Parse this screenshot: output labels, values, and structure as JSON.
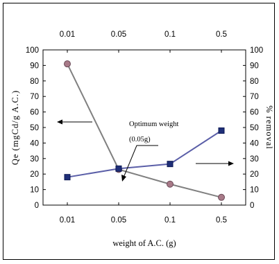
{
  "chart_data": {
    "type": "line",
    "categories": [
      "0.01",
      "0.05",
      "0.1",
      "0.5"
    ],
    "xlabel": "weight of A.C. (g)",
    "ylabel_left": "Qe (mgCd/g A.C.)",
    "ylabel_right": "% removal",
    "ylim": [
      0,
      100
    ],
    "y_ticks": [
      "0",
      "10",
      "20",
      "30",
      "40",
      "50",
      "60",
      "70",
      "80",
      "90",
      "100"
    ],
    "grid": false,
    "series": [
      {
        "axis": "left",
        "marker": "circle",
        "color": "#808080",
        "marker_color": "#a87a88",
        "values": [
          91,
          23,
          13.5,
          5
        ]
      },
      {
        "axis": "right",
        "marker": "square",
        "color": "#5b5fa8",
        "marker_color": "#1f2f78",
        "values": [
          18,
          23.5,
          26.5,
          48
        ]
      }
    ],
    "annotations": {
      "optimum_line1": "Optimum weight",
      "optimum_line2": "(0.05g)"
    }
  }
}
